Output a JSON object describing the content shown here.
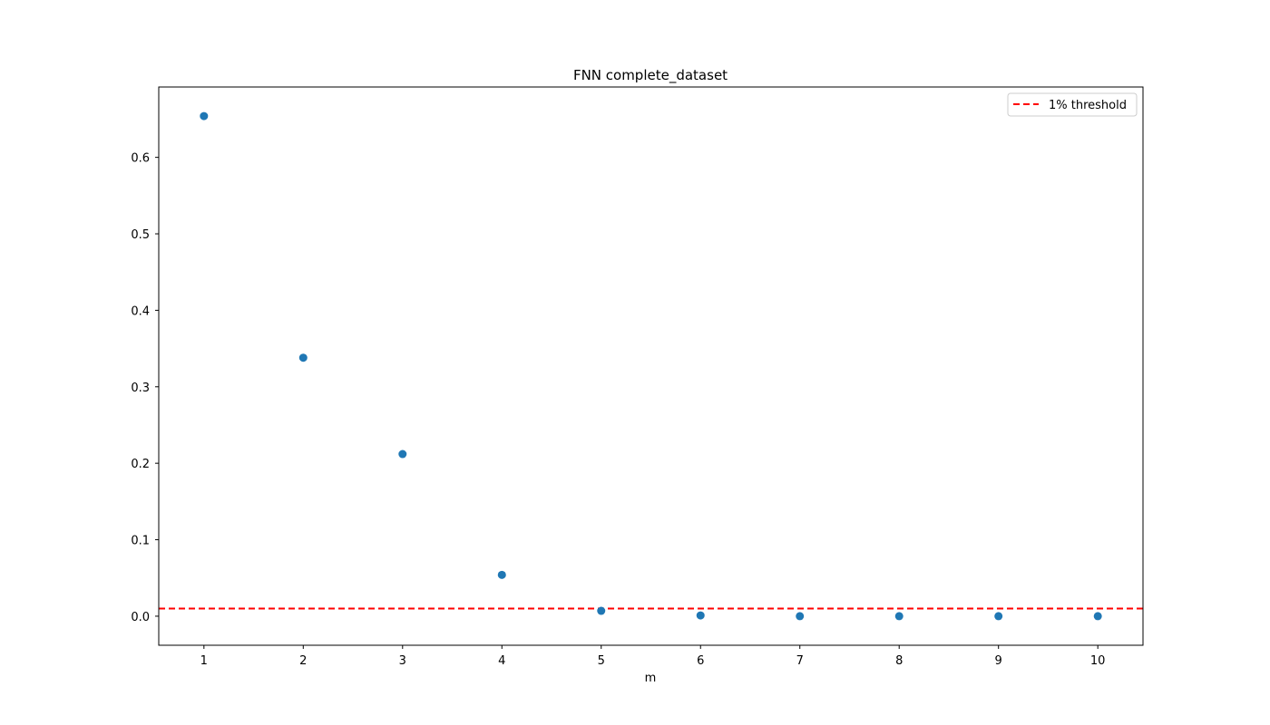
{
  "chart_data": {
    "type": "scatter",
    "title": "FNN complete_dataset",
    "xlabel": "m",
    "ylabel": "",
    "x": [
      1,
      2,
      3,
      4,
      5,
      6,
      7,
      8,
      9,
      10
    ],
    "y": [
      0.654,
      0.338,
      0.212,
      0.054,
      0.007,
      0.001,
      0.0,
      0.0,
      0.0,
      0.0
    ],
    "xlim": [
      0.545,
      10.455
    ],
    "ylim": [
      -0.038,
      0.692
    ],
    "xticks": [
      1,
      2,
      3,
      4,
      5,
      6,
      7,
      8,
      9,
      10
    ],
    "xtick_labels": [
      "1",
      "2",
      "3",
      "4",
      "5",
      "6",
      "7",
      "8",
      "9",
      "10"
    ],
    "yticks": [
      0.0,
      0.1,
      0.2,
      0.3,
      0.4,
      0.5,
      0.6
    ],
    "ytick_labels": [
      "0.0",
      "0.1",
      "0.2",
      "0.3",
      "0.4",
      "0.5",
      "0.6"
    ],
    "grid": false,
    "threshold": {
      "y": 0.01,
      "label": "1% threshold",
      "style": "dashed",
      "color": "#ff0000"
    },
    "marker_color": "#1f77b4",
    "legend": {
      "position": "top-right",
      "entries": [
        "1% threshold"
      ]
    }
  }
}
